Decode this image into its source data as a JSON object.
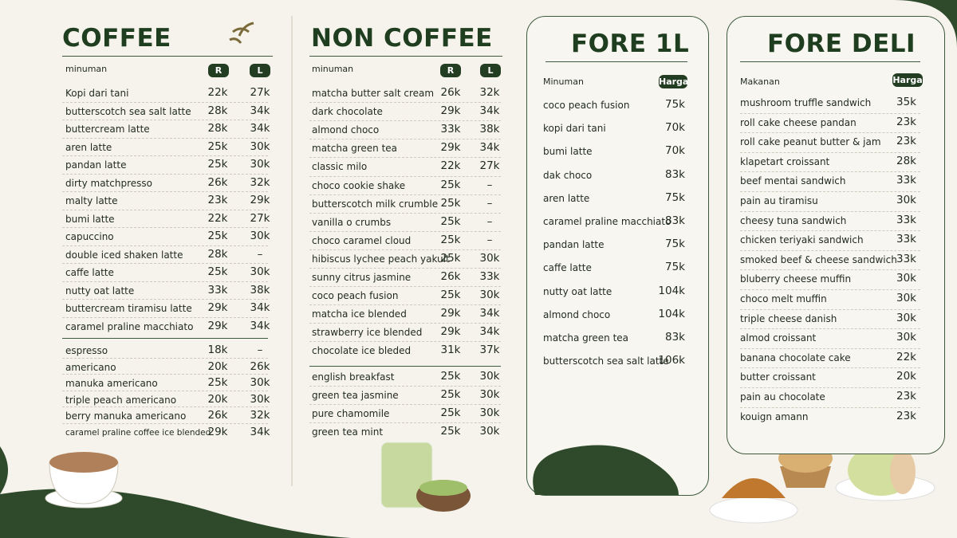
{
  "coffee": {
    "title": "COFFEE",
    "header": [
      "minuman",
      "R",
      "L"
    ],
    "groups": [
      [
        [
          "Kopi dari tani",
          "22k",
          "27k"
        ],
        [
          "butterscotch sea salt latte",
          "28k",
          "34k"
        ],
        [
          "buttercream latte",
          "28k",
          "34k"
        ],
        [
          "aren latte",
          "25k",
          "30k"
        ],
        [
          "pandan latte",
          "25k",
          "30k"
        ],
        [
          "dirty matchpresso",
          "26k",
          "32k"
        ],
        [
          "malty latte",
          "23k",
          "29k"
        ],
        [
          "bumi latte",
          "22k",
          "27k"
        ],
        [
          "capuccino",
          "25k",
          "30k"
        ],
        [
          "double iced shaken latte",
          "28k",
          "–"
        ],
        [
          "caffe latte",
          "25k",
          "30k"
        ],
        [
          "nutty oat latte",
          "33k",
          "38k"
        ],
        [
          "buttercream tiramisu latte",
          "29k",
          "34k"
        ],
        [
          "caramel praline macchiato",
          "29k",
          "34k"
        ]
      ],
      [
        [
          "espresso",
          "18k",
          "–"
        ],
        [
          "americano",
          "20k",
          "26k"
        ],
        [
          "manuka americano",
          "25k",
          "30k"
        ],
        [
          "triple peach americano",
          "20k",
          "30k"
        ],
        [
          "berry manuka americano",
          "26k",
          "32k"
        ],
        [
          "caramel praline coffee ice blended",
          "29k",
          "34k"
        ]
      ]
    ]
  },
  "non_coffee": {
    "title": "NON COFFEE",
    "header": [
      "minuman",
      "R",
      "L"
    ],
    "groups": [
      [
        [
          "matcha butter salt cream",
          "26k",
          "32k"
        ],
        [
          "dark chocolate",
          "29k",
          "34k"
        ],
        [
          "almond choco",
          "33k",
          "38k"
        ],
        [
          "matcha green tea",
          "29k",
          "34k"
        ],
        [
          "classic milo",
          "22k",
          "27k"
        ],
        [
          "choco cookie shake",
          "25k",
          "–"
        ],
        [
          "butterscotch milk crumble",
          "25k",
          "–"
        ],
        [
          "vanilla o crumbs",
          "25k",
          "–"
        ],
        [
          "choco caramel cloud",
          "25k",
          "–"
        ],
        [
          "hibiscus lychee peach yakult",
          "25k",
          "30k"
        ],
        [
          "sunny citrus jasmine",
          "26k",
          "33k"
        ],
        [
          "coco peach fusion",
          "25k",
          "30k"
        ],
        [
          "matcha ice blended",
          "29k",
          "34k"
        ],
        [
          "strawberry ice blended",
          "29k",
          "34k"
        ],
        [
          "chocolate ice bleded",
          "31k",
          "37k"
        ]
      ],
      [
        [
          "english breakfast",
          "25k",
          "30k"
        ],
        [
          "green tea jasmine",
          "25k",
          "30k"
        ],
        [
          "pure chamomile",
          "25k",
          "30k"
        ],
        [
          "green tea mint",
          "25k",
          "30k"
        ]
      ]
    ]
  },
  "fore_1l": {
    "title": "FORE 1L",
    "header": [
      "Minuman",
      "Harga"
    ],
    "groups": [
      [
        [
          "coco peach fusion",
          "75k"
        ],
        [
          "kopi dari tani",
          "70k"
        ],
        [
          "bumi latte",
          "70k"
        ],
        [
          "dak choco",
          "83k"
        ],
        [
          "aren latte",
          "75k"
        ],
        [
          "caramel praline macchiato",
          "83k"
        ],
        [
          "pandan latte",
          "75k"
        ],
        [
          "caffe latte",
          "75k"
        ],
        [
          "nutty oat latte",
          "104k"
        ],
        [
          "almond choco",
          "104k"
        ],
        [
          "matcha green tea",
          "83k"
        ],
        [
          "butterscotch sea salt latte",
          "106k"
        ]
      ]
    ]
  },
  "fore_deli": {
    "title": "FORE DELI",
    "header": [
      "Makanan",
      "Harga"
    ],
    "groups": [
      [
        [
          "mushroom truffle sandwich",
          "35k"
        ],
        [
          "roll cake cheese pandan",
          "23k"
        ],
        [
          "roll cake peanut butter & jam",
          "23k"
        ],
        [
          "klapetart croissant",
          "28k"
        ],
        [
          "beef mentai sandwich",
          "33k"
        ],
        [
          "pain au tiramisu",
          "30k"
        ],
        [
          "cheesy tuna sandwich",
          "33k"
        ],
        [
          "chicken teriyaki sandwich",
          "33k"
        ],
        [
          "smoked beef & cheese sandwich",
          "33k"
        ],
        [
          "bluberry cheese muffin",
          "30k"
        ],
        [
          "choco melt muffin",
          "30k"
        ],
        [
          "triple cheese danish",
          "30k"
        ],
        [
          "almod croissant",
          "30k"
        ],
        [
          "banana chocolate cake",
          "22k"
        ],
        [
          "butter croissant",
          "20k"
        ],
        [
          "pain au chocolate",
          "23k"
        ],
        [
          "kouign amann",
          "23k"
        ]
      ]
    ]
  }
}
